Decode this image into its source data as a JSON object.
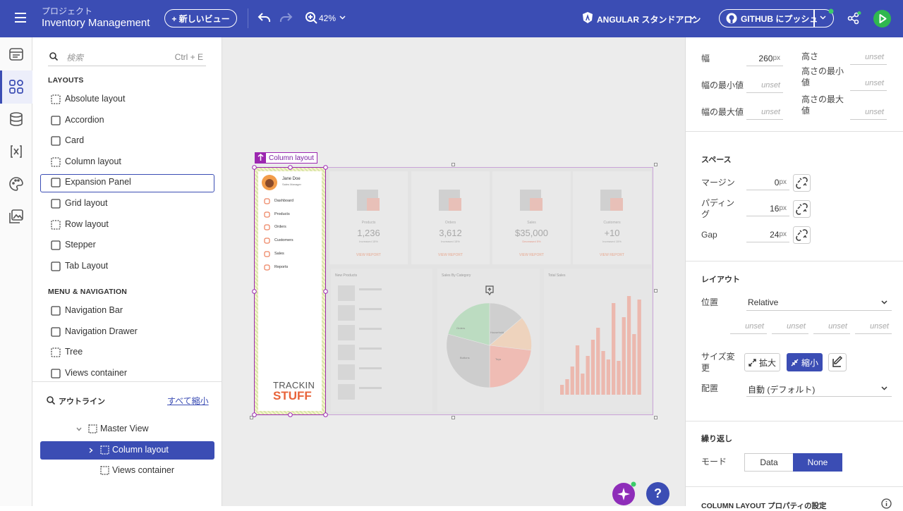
{
  "header": {
    "project_label": "プロジェクト",
    "project_name": "Inventory Management",
    "new_view": "+ 新しいビュー",
    "zoom": "42%",
    "framework": "ANGULAR スタンドアロン",
    "push": "GITHUB にプッシュ"
  },
  "sidebar": {
    "search": "検索",
    "shortcut": "Ctrl + E",
    "sections": [
      {
        "title": "LAYOUTS",
        "items": [
          "Absolute layout",
          "Accordion",
          "Card",
          "Column layout",
          "Expansion Panel",
          "Grid layout",
          "Row layout",
          "Stepper",
          "Tab Layout"
        ]
      },
      {
        "title": "MENU & NAVIGATION",
        "items": [
          "Navigation Bar",
          "Navigation Drawer",
          "Tree",
          "Views container"
        ]
      }
    ]
  },
  "outline": {
    "title": "アウトライン",
    "collapse_all": "すべて縮小",
    "tree": [
      "Master View",
      "Column layout",
      "Views container"
    ]
  },
  "canvas": {
    "selection_label": "Column layout",
    "preview": {
      "user_name": "Jane Doe",
      "user_role": "Sales Manager",
      "menu": [
        "Dashboard",
        "Products",
        "Orders",
        "Customers",
        "Sales",
        "Reports"
      ],
      "brand_top": "TRACKIN",
      "brand_bottom": "STUFF",
      "cards": [
        {
          "title": "Products",
          "value": "1,236",
          "note": "Increased 15%",
          "action": "VIEW REPORT"
        },
        {
          "title": "Orders",
          "value": "3,612",
          "note": "Increased 15%",
          "action": "VIEW REPORT"
        },
        {
          "title": "Sales",
          "value": "$35,000",
          "note": "Decreased 5%",
          "action": "VIEW REPORT"
        },
        {
          "title": "Customers",
          "value": "+10",
          "note": "Increased 15%",
          "action": "VIEW REPORT"
        }
      ],
      "panels": [
        "New Products",
        "Sales By Category",
        "Total Sales"
      ],
      "pie_labels": [
        "Orders",
        "Household",
        "Buttons",
        "Toys"
      ]
    },
    "help": "?"
  },
  "properties": {
    "size_fields": [
      {
        "label": "幅",
        "value": "260",
        "unit": "px"
      },
      {
        "label": "高さ",
        "value": "unset"
      },
      {
        "label": "幅の最小値",
        "value": "unset"
      },
      {
        "label": "高さの最小値",
        "value": "unset"
      },
      {
        "label": "幅の最大値",
        "value": "unset"
      },
      {
        "label": "高さの最大値",
        "value": "unset"
      }
    ],
    "space": {
      "title": "スペース",
      "fields": [
        {
          "label": "マージン",
          "value": "0",
          "unit": "px"
        },
        {
          "label": "パディング",
          "value": "16",
          "unit": "px"
        },
        {
          "label": "Gap",
          "value": "24",
          "unit": "px"
        }
      ]
    },
    "layout": {
      "title": "レイアウト",
      "position_label": "位置",
      "position_value": "Relative",
      "offsets": [
        "unset",
        "unset",
        "unset",
        "unset"
      ],
      "resize_label": "サイズ変更",
      "resize_options": [
        "拡大",
        "縮小"
      ],
      "align_label": "配置",
      "align_value": "自動 (デフォルト)"
    },
    "repeat": {
      "title": "繰り返し",
      "mode_label": "モード",
      "modes": [
        "Data",
        "None"
      ]
    },
    "settings_title": "COLUMN LAYOUT プロパティの設定"
  }
}
